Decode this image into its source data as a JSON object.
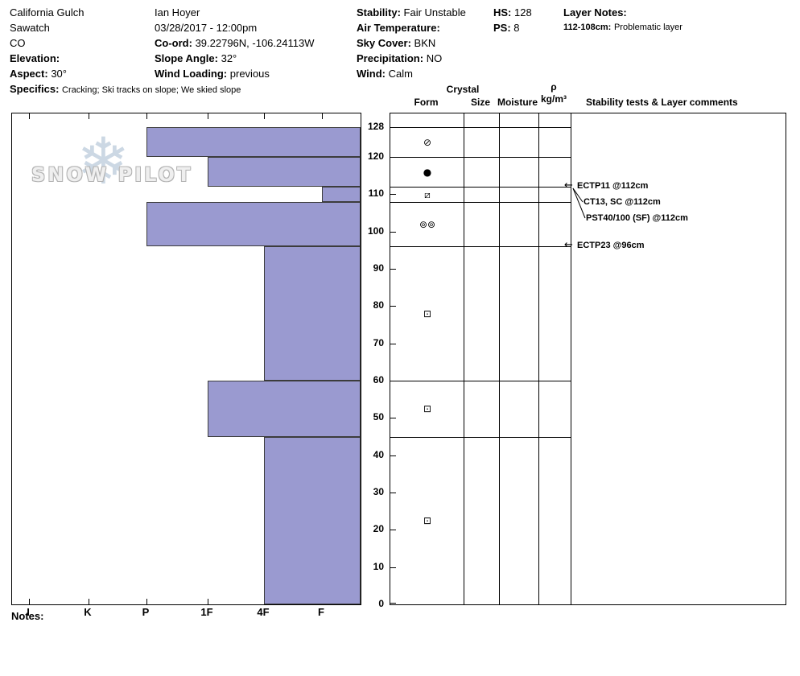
{
  "header": {
    "location": {
      "name": "California Gulch",
      "range": "Sawatch",
      "state": "CO",
      "elevation_label": "Elevation:",
      "aspect_label": "Aspect:",
      "aspect": "30°",
      "specifics_label": "Specifics:",
      "specifics": "Cracking;  Ski tracks on slope;  We skied slope"
    },
    "observer": {
      "name": "Ian Hoyer",
      "datetime": "03/28/2017 - 12:00pm",
      "coord_label": "Co-ord:",
      "coord": "39.22796N, -106.24113W",
      "slope_angle_label": "Slope Angle:",
      "slope_angle": "32°",
      "wind_loading_label": "Wind Loading:",
      "wind_loading": "previous"
    },
    "conditions": {
      "stability_label": "Stability:",
      "stability": "Fair Unstable",
      "air_temp_label": "Air Temperature:",
      "sky_label": "Sky Cover:",
      "sky": "BKN",
      "precip_label": "Precipitation:",
      "precip": "NO",
      "wind_label": "Wind:",
      "wind": "Calm"
    },
    "measures": {
      "hs_label": "HS:",
      "hs": "128",
      "ps_label": "PS:",
      "ps": "8"
    },
    "layer_notes": {
      "title": "Layer Notes:",
      "note_depth": "112-108cm:",
      "note_text": "Problematic layer"
    }
  },
  "logo": {
    "text": "SNOW PILOT",
    "snowflake": "❄"
  },
  "notes_label": "Notes:",
  "chart_data": {
    "type": "bar",
    "subtype": "snow-pit-hardness-profile",
    "depth_axis": {
      "unit": "cm",
      "ticks": [
        0,
        10,
        20,
        30,
        40,
        50,
        60,
        70,
        80,
        90,
        100,
        110,
        120,
        128
      ],
      "max": 128
    },
    "hardness_axis": {
      "categories": [
        "I",
        "K",
        "P",
        "1F",
        "4F",
        "F"
      ],
      "direction": "hard-left-soft-right"
    },
    "bar_color": "#9a9ad0",
    "layers": [
      {
        "top_cm": 128,
        "bottom_cm": 120,
        "hardness": "P",
        "grain_form_symbol": "⊘"
      },
      {
        "top_cm": 120,
        "bottom_cm": 112,
        "hardness": "1F",
        "grain_form_symbol": "●"
      },
      {
        "top_cm": 112,
        "bottom_cm": 108,
        "hardness": "F",
        "grain_form_symbol": "⧄"
      },
      {
        "top_cm": 108,
        "bottom_cm": 96,
        "hardness": "P",
        "grain_form_symbol": "⊚⊚"
      },
      {
        "top_cm": 96,
        "bottom_cm": 60,
        "hardness": "4F",
        "grain_form_symbol": "⊡"
      },
      {
        "top_cm": 60,
        "bottom_cm": 45,
        "hardness": "1F",
        "grain_form_symbol": "⊡"
      },
      {
        "top_cm": 45,
        "bottom_cm": 0,
        "hardness": "4F",
        "grain_form_symbol": "⊡"
      }
    ],
    "columns": {
      "crystal": "Crystal",
      "form": "Form",
      "size": "Size",
      "moisture": "Moisture",
      "rho": "ρ",
      "rho_units": "kg/m³",
      "stability": "Stability tests & Layer comments"
    },
    "stability_tests": [
      {
        "label": "ECTP11 @112cm",
        "depth_cm": 112,
        "row": 0,
        "arrow": true
      },
      {
        "label": "CT13, SC @112cm",
        "depth_cm": 112,
        "row": 1,
        "arrow": false
      },
      {
        "label": "PST40/100 (SF) @112cm",
        "depth_cm": 112,
        "row": 2,
        "arrow": false
      },
      {
        "label": "ECTP23 @96cm",
        "depth_cm": 96,
        "row": 0,
        "arrow": true
      }
    ]
  }
}
